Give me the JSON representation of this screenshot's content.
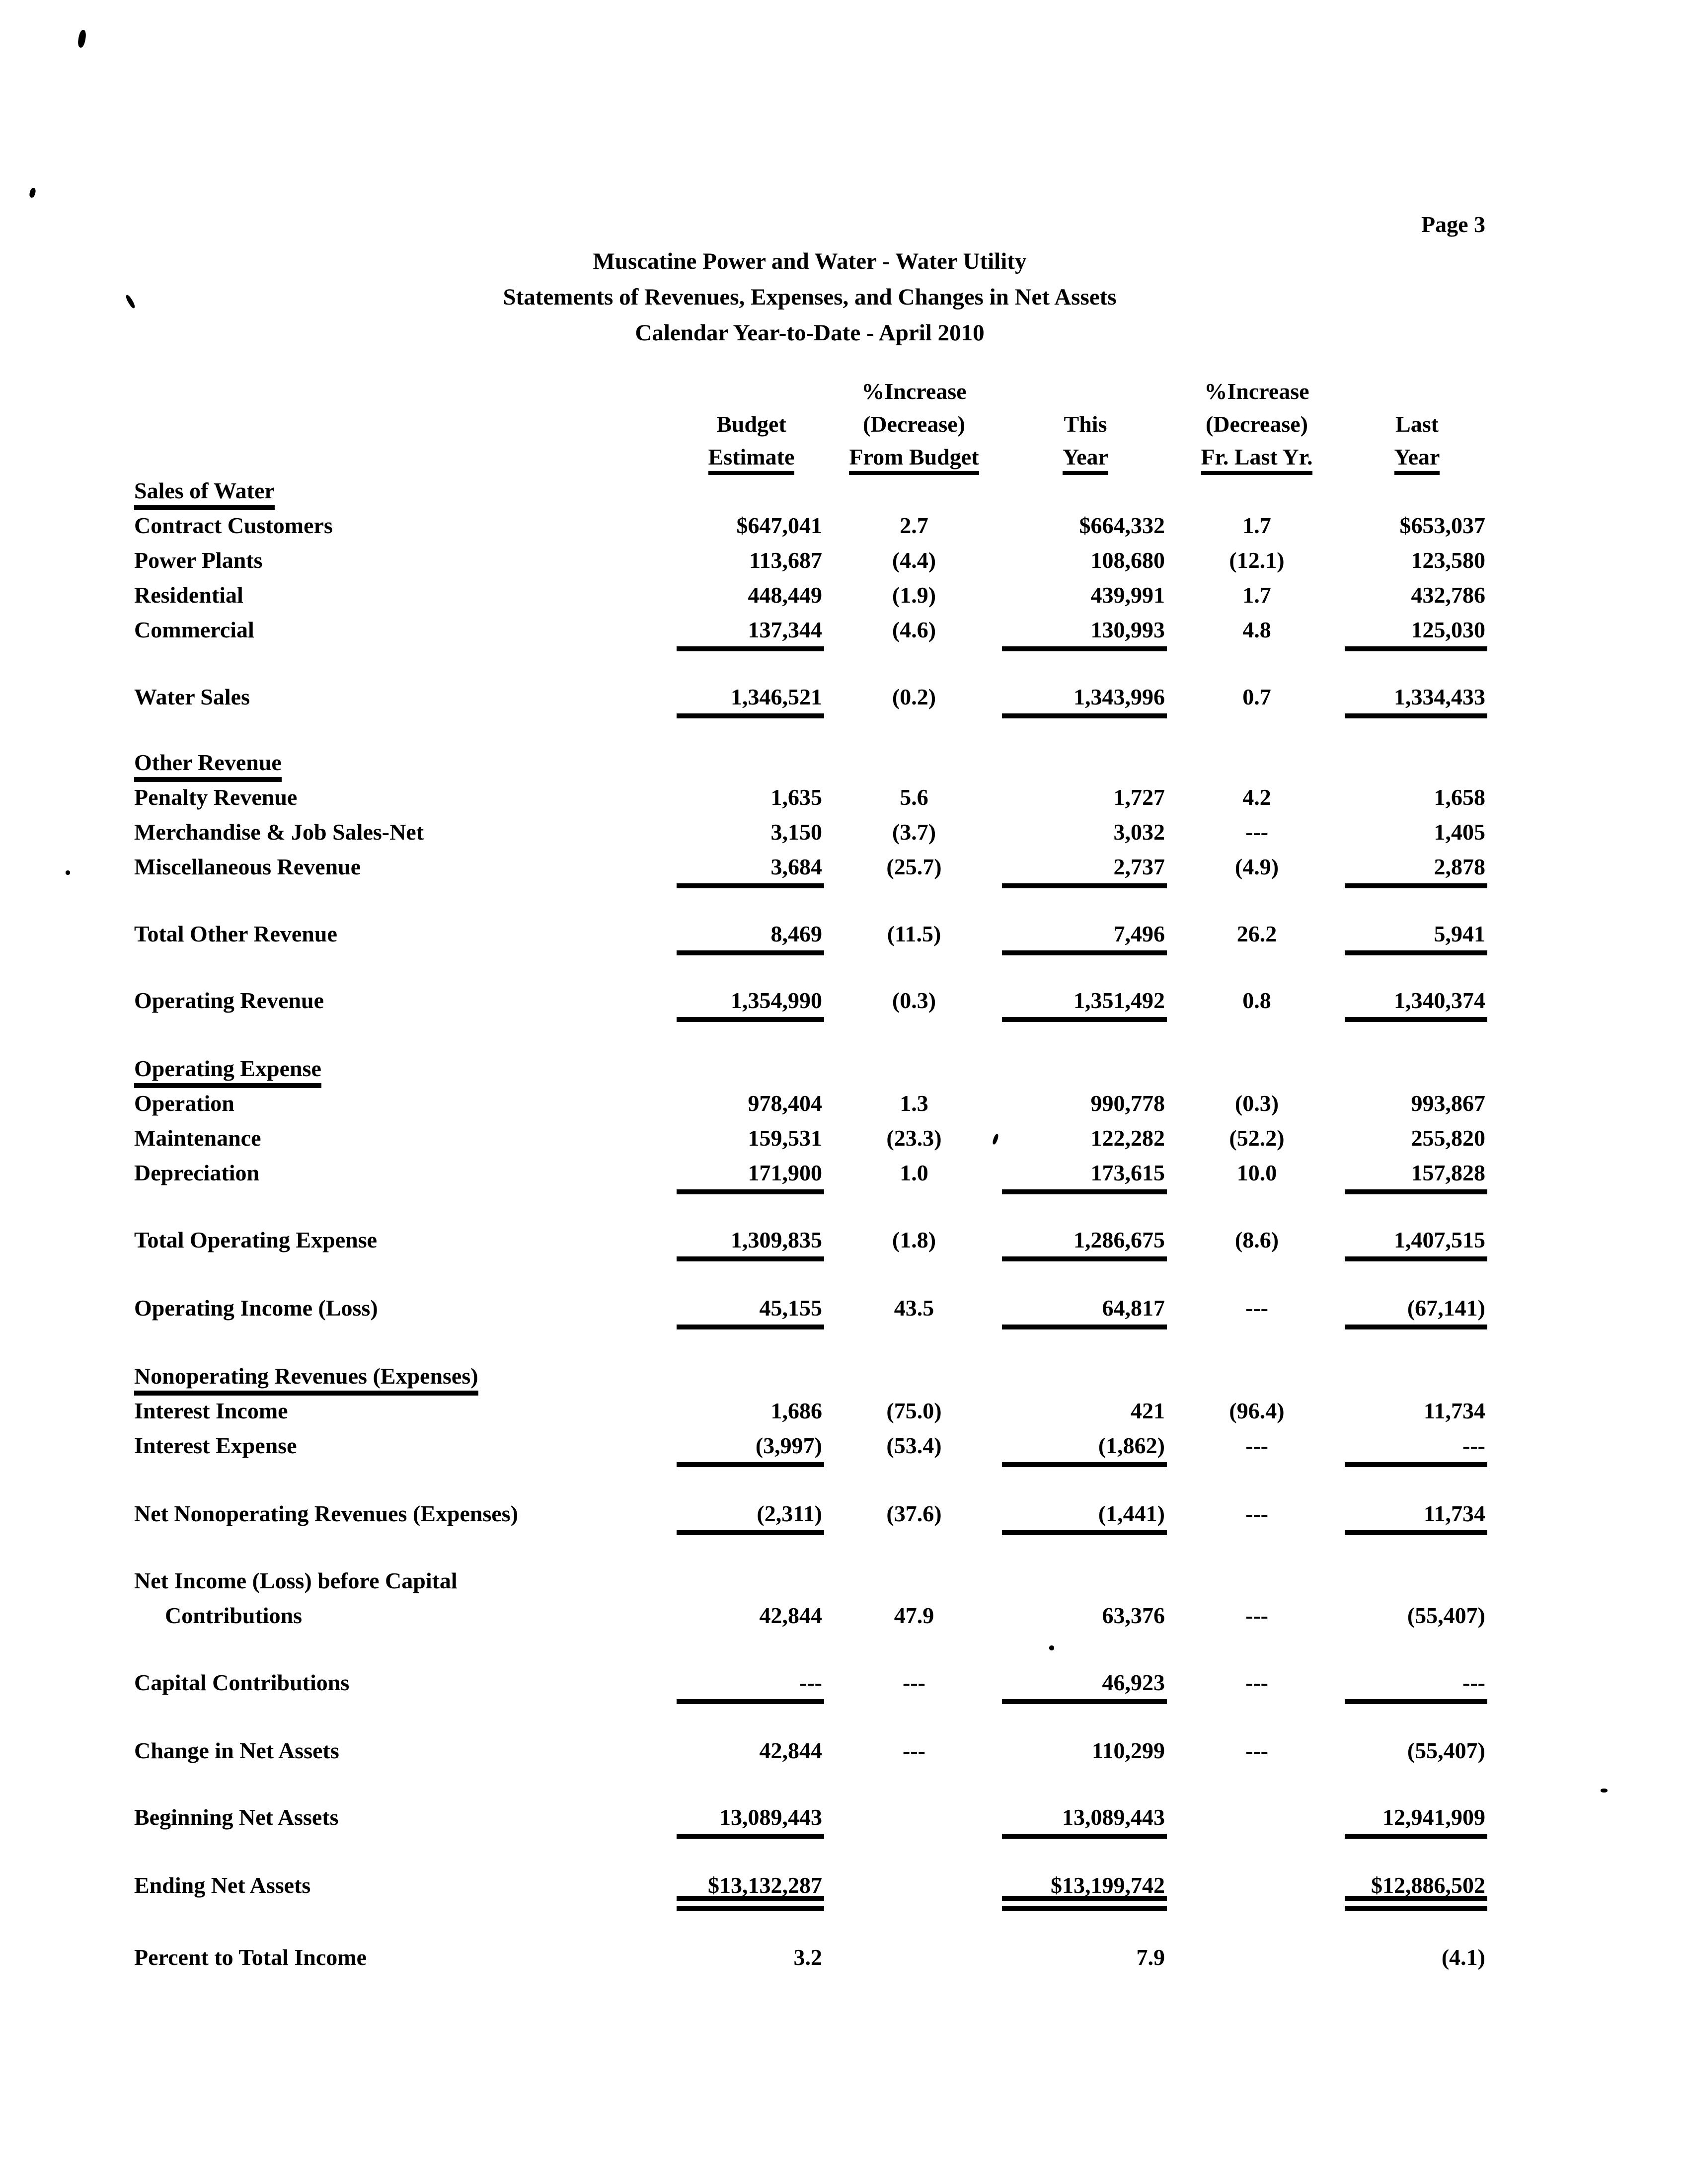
{
  "document": {
    "page_number": "Page 3",
    "title_line1": "Muscatine Power and Water - Water Utility",
    "title_line2": "Statements of Revenues, Expenses, and Changes in Net Assets",
    "title_line3": "Calendar Year-to-Date - April 2010"
  },
  "table": {
    "columns": {
      "budget": {
        "line1": "Budget",
        "line2": "Estimate"
      },
      "from_budget": {
        "line0": "%Increase",
        "line1": "(Decrease)",
        "line2": "From Budget"
      },
      "this_year": {
        "line1": "This",
        "line2": "Year"
      },
      "fr_last_yr": {
        "line0": "%Increase",
        "line1": "(Decrease)",
        "line2": "Fr. Last Yr."
      },
      "last_year": {
        "line1": "Last",
        "line2": "Year"
      }
    },
    "rows": [
      {
        "kind": "section",
        "label": "Sales of Water"
      },
      {
        "kind": "data",
        "label": "Contract Customers",
        "c1": "$647,041",
        "c2": "2.7",
        "c3": "$664,332",
        "c4": "1.7",
        "c5": "$653,037"
      },
      {
        "kind": "data",
        "label": "Power Plants",
        "c1": "113,687",
        "c2": "(4.4)",
        "c3": "108,680",
        "c4": "(12.1)",
        "c5": "123,580"
      },
      {
        "kind": "data",
        "label": "Residential",
        "c1": "448,449",
        "c2": "(1.9)",
        "c3": "439,991",
        "c4": "1.7",
        "c5": "432,786"
      },
      {
        "kind": "data",
        "label": "Commercial",
        "c1": "137,344",
        "c2": "(4.6)",
        "c3": "130,993",
        "c4": "4.8",
        "c5": "125,030",
        "u": 1
      },
      {
        "kind": "gap",
        "h": 65
      },
      {
        "kind": "data",
        "label": "Water Sales",
        "c1": "1,346,521",
        "c2": "(0.2)",
        "c3": "1,343,996",
        "c4": "0.7",
        "c5": "1,334,433",
        "u": 1
      },
      {
        "kind": "gap",
        "h": 62
      },
      {
        "kind": "section",
        "label": "Other Revenue"
      },
      {
        "kind": "data",
        "label": "Penalty Revenue",
        "c1": "1,635",
        "c2": "5.6",
        "c3": "1,727",
        "c4": "4.2",
        "c5": "1,658"
      },
      {
        "kind": "data",
        "label": "Merchandise & Job Sales-Net",
        "c1": "3,150",
        "c2": "(3.7)",
        "c3": "3,032",
        "c4": "---",
        "c5": "1,405"
      },
      {
        "kind": "data",
        "label": "Miscellaneous Revenue",
        "c1": "3,684",
        "c2": "(25.7)",
        "c3": "2,737",
        "c4": "(4.9)",
        "c5": "2,878",
        "u": 1
      },
      {
        "kind": "gap",
        "h": 65
      },
      {
        "kind": "data",
        "label": "Total Other Revenue",
        "c1": "8,469",
        "c2": "(11.5)",
        "c3": "7,496",
        "c4": "26.2",
        "c5": "5,941",
        "u": 1
      },
      {
        "kind": "gap",
        "h": 64
      },
      {
        "kind": "data",
        "label": "Operating Revenue",
        "c1": "1,354,990",
        "c2": "(0.3)",
        "c3": "1,351,492",
        "c4": "0.8",
        "c5": "1,340,374",
        "u": 1
      },
      {
        "kind": "gap",
        "h": 67
      },
      {
        "kind": "section",
        "label": "Operating Expense"
      },
      {
        "kind": "data",
        "label": "Operation",
        "c1": "978,404",
        "c2": "1.3",
        "c3": "990,778",
        "c4": "(0.3)",
        "c5": "993,867"
      },
      {
        "kind": "data",
        "label": "Maintenance",
        "c1": "159,531",
        "c2": "(23.3)",
        "c3": "122,282",
        "c4": "(52.2)",
        "c5": "255,820"
      },
      {
        "kind": "data",
        "label": "Depreciation",
        "c1": "171,900",
        "c2": "1.0",
        "c3": "173,615",
        "c4": "10.0",
        "c5": "157,828",
        "u": 1
      },
      {
        "kind": "gap",
        "h": 65
      },
      {
        "kind": "data",
        "label": "Total Operating Expense",
        "c1": "1,309,835",
        "c2": "(1.8)",
        "c3": "1,286,675",
        "c4": "(8.6)",
        "c5": "1,407,515",
        "u": 1
      },
      {
        "kind": "gap",
        "h": 67
      },
      {
        "kind": "data",
        "label": "Operating Income (Loss)",
        "c1": "45,155",
        "c2": "43.5",
        "c3": "64,817",
        "c4": "---",
        "c5": "(67,141)",
        "u": 1
      },
      {
        "kind": "gap",
        "h": 67
      },
      {
        "kind": "section",
        "label": "Nonoperating Revenues (Expenses)"
      },
      {
        "kind": "data",
        "label": "Interest Income",
        "c1": "1,686",
        "c2": "(75.0)",
        "c3": "421",
        "c4": "(96.4)",
        "c5": "11,734"
      },
      {
        "kind": "data",
        "label": "Interest Expense",
        "c1": "(3,997)",
        "c2": "(53.4)",
        "c3": "(1,862)",
        "c4": "---",
        "c5": "---",
        "u": 1
      },
      {
        "kind": "gap",
        "h": 67
      },
      {
        "kind": "data",
        "label": "Net Nonoperating Revenues (Expenses)",
        "c1": "(2,311)",
        "c2": "(37.6)",
        "c3": "(1,441)",
        "c4": "---",
        "c5": "11,734",
        "u": 1
      },
      {
        "kind": "gap",
        "h": 65
      },
      {
        "kind": "data",
        "label": "Net Income (Loss) before Capital",
        "c1": "",
        "c2": "",
        "c3": "",
        "c4": "",
        "c5": ""
      },
      {
        "kind": "data",
        "label": "Contributions",
        "indent": true,
        "c1": "42,844",
        "c2": "47.9",
        "c3": "63,376",
        "c4": "---",
        "c5": "(55,407)"
      },
      {
        "kind": "gap",
        "h": 65
      },
      {
        "kind": "data",
        "label": "Capital Contributions",
        "c1": "---",
        "c2": "---",
        "c3": "46,923",
        "c4": "---",
        "c5": "---",
        "u": 1
      },
      {
        "kind": "gap",
        "h": 67
      },
      {
        "kind": "data",
        "label": "Change in Net Assets",
        "c1": "42,844",
        "c2": "---",
        "c3": "110,299",
        "c4": "---",
        "c5": "(55,407)"
      },
      {
        "kind": "gap",
        "h": 64
      },
      {
        "kind": "data",
        "label": "Beginning Net Assets",
        "c1": "13,089,443",
        "c2": "",
        "c3": "13,089,443",
        "c4": "",
        "c5": "12,941,909",
        "u": 1
      },
      {
        "kind": "gap",
        "h": 67
      },
      {
        "kind": "data",
        "label": "Ending Net Assets",
        "c1": "$13,132,287",
        "c2": "",
        "c3": "$13,199,742",
        "c4": "",
        "c5": "$12,886,502",
        "u": 2
      },
      {
        "kind": "gap",
        "h": 75
      },
      {
        "kind": "data",
        "label": "Percent to Total Income",
        "c1": "3.2",
        "c2": "",
        "c3": "7.9",
        "c4": "",
        "c5": "(4.1)"
      }
    ]
  }
}
